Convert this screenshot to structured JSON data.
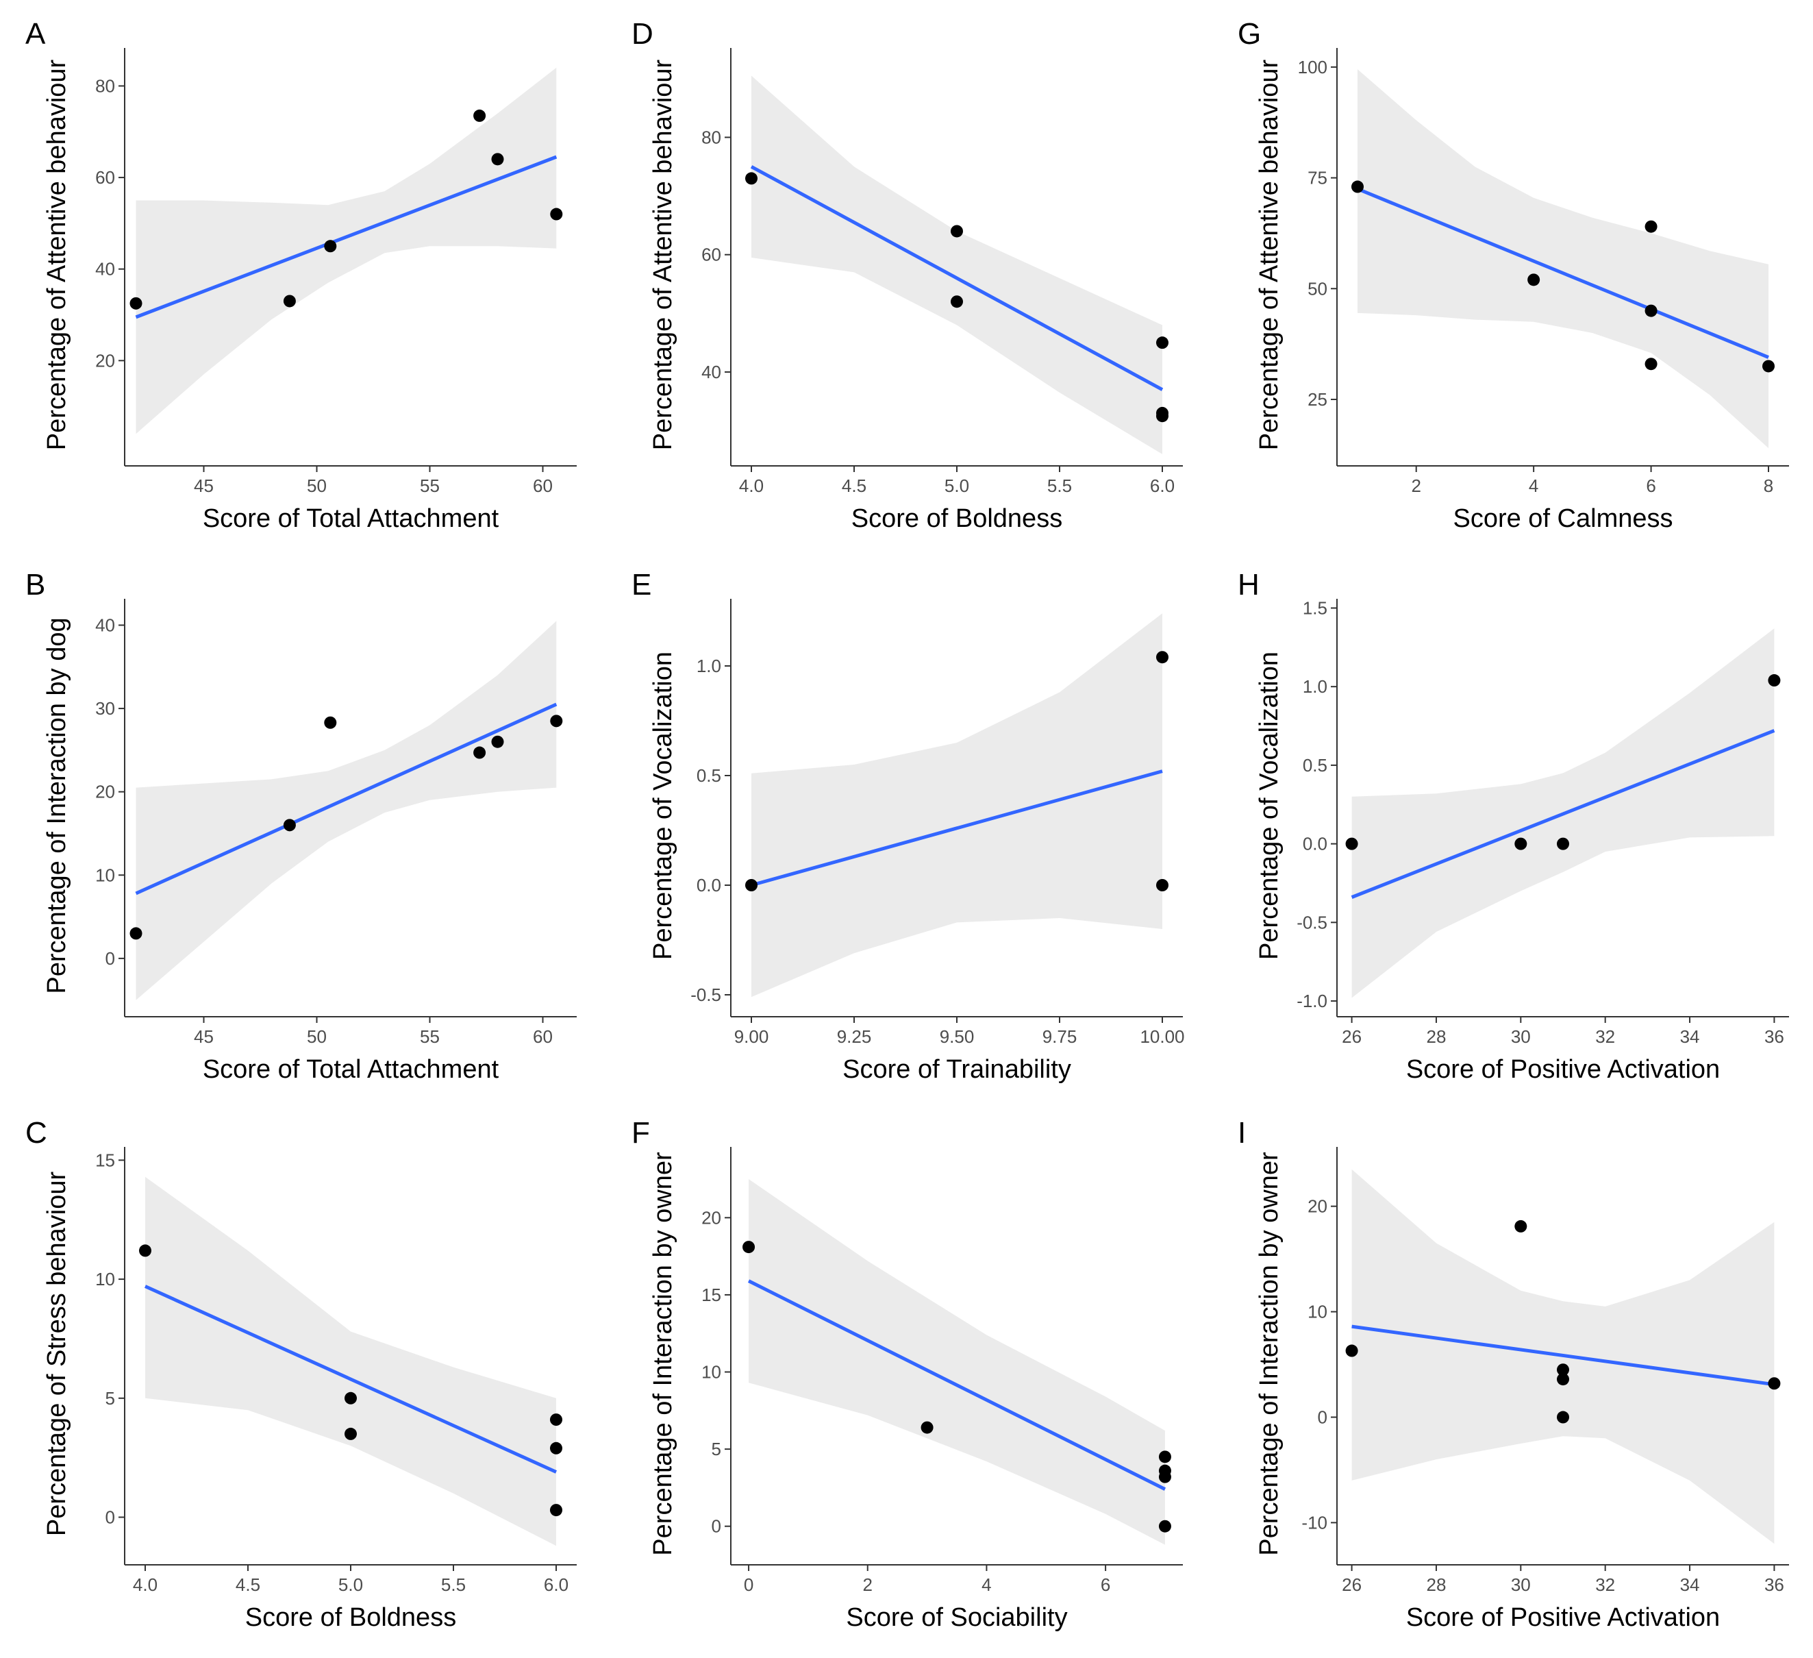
{
  "chart_data": [
    {
      "panel": "A",
      "type": "scatter",
      "xlabel": "Score of Total Attachment",
      "ylabel": "Percentage of Attentive behaviour",
      "xlim": [
        41.5,
        61.5
      ],
      "ylim": [
        -3,
        88
      ],
      "xticks": [
        45,
        50,
        55,
        60
      ],
      "yticks": [
        20,
        40,
        60,
        80
      ],
      "xtick_labels": [
        "45",
        "50",
        "55",
        "60"
      ],
      "ytick_labels": [
        "20",
        "40",
        "60",
        "80"
      ],
      "points": [
        [
          42,
          32.5
        ],
        [
          48.8,
          33
        ],
        [
          50.6,
          45
        ],
        [
          57.2,
          73.5
        ],
        [
          58,
          64
        ],
        [
          60.6,
          52
        ]
      ],
      "fit": {
        "x": [
          42,
          60.6
        ],
        "y": [
          29.5,
          64.5
        ]
      },
      "band": {
        "x": [
          42,
          45,
          48,
          50.5,
          53,
          55,
          58,
          60.6
        ],
        "lo": [
          4,
          17,
          29,
          37,
          43.5,
          45,
          45,
          44.5
        ],
        "hi": [
          55,
          55,
          54.5,
          54,
          57,
          63,
          74,
          84
        ]
      }
    },
    {
      "panel": "B",
      "type": "scatter",
      "xlabel": "Score of Total Attachment",
      "ylabel": "Percentage of Interaction by dog",
      "xlim": [
        41.5,
        61.5
      ],
      "ylim": [
        -7,
        43
      ],
      "xticks": [
        45,
        50,
        55,
        60
      ],
      "yticks": [
        0,
        10,
        20,
        30,
        40
      ],
      "xtick_labels": [
        "45",
        "50",
        "55",
        "60"
      ],
      "ytick_labels": [
        "0",
        "10",
        "20",
        "30",
        "40"
      ],
      "points": [
        [
          42,
          3
        ],
        [
          48.8,
          16
        ],
        [
          50.6,
          28.3
        ],
        [
          57.2,
          24.7
        ],
        [
          58,
          26
        ],
        [
          60.6,
          28.5
        ]
      ],
      "fit": {
        "x": [
          42,
          60.6
        ],
        "y": [
          7.8,
          30.5
        ]
      },
      "band": {
        "x": [
          42,
          45,
          48,
          50.5,
          53,
          55,
          58,
          60.6
        ],
        "lo": [
          -5,
          2,
          9,
          14,
          17.5,
          19,
          20,
          20.5
        ],
        "hi": [
          20.5,
          21,
          21.5,
          22.5,
          25,
          28,
          34,
          40.5
        ]
      }
    },
    {
      "panel": "C",
      "type": "scatter",
      "xlabel": "Score of Boldness",
      "ylabel": "Percentage of Stress behaviour",
      "xlim": [
        3.9,
        6.1
      ],
      "ylim": [
        -2,
        15.5
      ],
      "xticks": [
        4,
        4.5,
        5,
        5.5,
        6
      ],
      "yticks": [
        0,
        5,
        10,
        15
      ],
      "xtick_labels": [
        "4.0",
        "4.5",
        "5.0",
        "5.5",
        "6.0"
      ],
      "ytick_labels": [
        "0",
        "5",
        "10",
        "15"
      ],
      "points": [
        [
          4,
          11.2
        ],
        [
          5,
          5
        ],
        [
          5,
          3.5
        ],
        [
          6,
          4.1
        ],
        [
          6,
          2.9
        ],
        [
          6,
          0.3
        ]
      ],
      "fit": {
        "x": [
          4,
          6
        ],
        "y": [
          9.7,
          1.9
        ]
      },
      "band": {
        "x": [
          4,
          4.5,
          5,
          5.5,
          6
        ],
        "lo": [
          5,
          4.5,
          3,
          1,
          -1.2
        ],
        "hi": [
          14.3,
          11.2,
          7.8,
          6.3,
          5
        ]
      }
    },
    {
      "panel": "D",
      "type": "scatter",
      "xlabel": "Score of Boldness",
      "ylabel": "Percentage of Attentive behaviour",
      "xlim": [
        3.9,
        6.1
      ],
      "ylim": [
        24,
        95
      ],
      "xticks": [
        4,
        4.5,
        5,
        5.5,
        6
      ],
      "yticks": [
        40,
        60,
        80
      ],
      "xtick_labels": [
        "4.0",
        "4.5",
        "5.0",
        "5.5",
        "6.0"
      ],
      "ytick_labels": [
        "40",
        "60",
        "80"
      ],
      "points": [
        [
          4,
          73
        ],
        [
          5,
          64
        ],
        [
          5,
          52
        ],
        [
          6,
          45
        ],
        [
          6,
          33
        ],
        [
          6,
          32.5
        ]
      ],
      "fit": {
        "x": [
          4,
          6
        ],
        "y": [
          75,
          37
        ]
      },
      "band": {
        "x": [
          4,
          4.5,
          5,
          5.5,
          6
        ],
        "lo": [
          59.5,
          57,
          48,
          36.5,
          26
        ],
        "hi": [
          90.5,
          75,
          64,
          56,
          48
        ]
      }
    },
    {
      "panel": "E",
      "type": "scatter",
      "xlabel": "Score of Trainability",
      "ylabel": "Percentage of Vocalization",
      "xlim": [
        8.95,
        10.05
      ],
      "ylim": [
        -0.6,
        1.3
      ],
      "xticks": [
        9,
        9.25,
        9.5,
        9.75,
        10
      ],
      "yticks": [
        -0.5,
        0,
        0.5,
        1
      ],
      "xtick_labels": [
        "9.00",
        "9.25",
        "9.50",
        "9.75",
        "10.00"
      ],
      "ytick_labels": [
        "-0.5",
        "0.0",
        "0.5",
        "1.0"
      ],
      "points": [
        [
          9,
          0
        ],
        [
          10,
          1.04
        ],
        [
          10,
          0
        ]
      ],
      "fit": {
        "x": [
          9,
          10
        ],
        "y": [
          0,
          0.52
        ]
      },
      "band": {
        "x": [
          9,
          9.25,
          9.5,
          9.75,
          10
        ],
        "lo": [
          -0.51,
          -0.31,
          -0.17,
          -0.15,
          -0.2
        ],
        "hi": [
          0.51,
          0.55,
          0.65,
          0.88,
          1.24
        ]
      }
    },
    {
      "panel": "F",
      "type": "scatter",
      "xlabel": "Score of Sociability",
      "ylabel": "Percentage of Interaction by owner",
      "xlim": [
        -0.3,
        7.3
      ],
      "ylim": [
        -2.5,
        24.5
      ],
      "xticks": [
        0,
        2,
        4,
        6
      ],
      "yticks": [
        0,
        5,
        10,
        15,
        20
      ],
      "xtick_labels": [
        "0",
        "2",
        "4",
        "6"
      ],
      "ytick_labels": [
        "0",
        "5",
        "10",
        "15",
        "20"
      ],
      "points": [
        [
          0,
          18.1
        ],
        [
          3,
          6.4
        ],
        [
          7,
          4.5
        ],
        [
          7,
          3.6
        ],
        [
          7,
          3.2
        ],
        [
          7,
          0
        ]
      ],
      "fit": {
        "x": [
          0,
          7
        ],
        "y": [
          15.9,
          2.4
        ]
      },
      "band": {
        "x": [
          0,
          2,
          4,
          6,
          7
        ],
        "lo": [
          9.3,
          7.2,
          4.2,
          0.8,
          -1.2
        ],
        "hi": [
          22.5,
          17.2,
          12.4,
          8.4,
          6.2
        ]
      }
    },
    {
      "panel": "G",
      "type": "scatter",
      "xlabel": "Score of Calmness",
      "ylabel": "Percentage of Attentive behaviour",
      "xlim": [
        0.65,
        8.35
      ],
      "ylim": [
        10,
        104
      ],
      "xticks": [
        2,
        4,
        6,
        8
      ],
      "yticks": [
        25,
        50,
        75,
        100
      ],
      "xtick_labels": [
        "2",
        "4",
        "6",
        "8"
      ],
      "ytick_labels": [
        "25",
        "50",
        "75",
        "100"
      ],
      "points": [
        [
          1,
          73
        ],
        [
          4,
          52
        ],
        [
          6,
          64
        ],
        [
          6,
          45
        ],
        [
          6,
          33
        ],
        [
          8,
          32.5
        ]
      ],
      "fit": {
        "x": [
          1,
          8
        ],
        "y": [
          72.5,
          34.5
        ]
      },
      "band": {
        "x": [
          1,
          2,
          3,
          4,
          5,
          6,
          7,
          8
        ],
        "lo": [
          44.5,
          44,
          43,
          42.5,
          40,
          35.5,
          26,
          14
        ],
        "hi": [
          99.5,
          88,
          77.5,
          70.5,
          66,
          62.5,
          58.5,
          55.5
        ]
      }
    },
    {
      "panel": "H",
      "type": "scatter",
      "xlabel": "Score of Positive Activation",
      "ylabel": "Percentage of Vocalization",
      "xlim": [
        25.65,
        36.35
      ],
      "ylim": [
        -1.1,
        1.55
      ],
      "xticks": [
        26,
        28,
        30,
        32,
        34,
        36
      ],
      "yticks": [
        -1,
        -0.5,
        0,
        0.5,
        1,
        1.5
      ],
      "xtick_labels": [
        "26",
        "28",
        "30",
        "32",
        "34",
        "36"
      ],
      "ytick_labels": [
        "-1.0",
        "-0.5",
        "0.0",
        "0.5",
        "1.0",
        "1.5"
      ],
      "points": [
        [
          26,
          0
        ],
        [
          30,
          0
        ],
        [
          31,
          0
        ],
        [
          36,
          1.04
        ]
      ],
      "fit": {
        "x": [
          26,
          36
        ],
        "y": [
          -0.34,
          0.72
        ]
      },
      "band": {
        "x": [
          26,
          28,
          30,
          31,
          32,
          34,
          36
        ],
        "lo": [
          -0.98,
          -0.56,
          -0.3,
          -0.18,
          -0.05,
          0.04,
          0.05
        ],
        "hi": [
          0.3,
          0.32,
          0.38,
          0.45,
          0.58,
          0.96,
          1.37
        ]
      }
    },
    {
      "panel": "I",
      "type": "scatter",
      "xlabel": "Score of Positive Activation",
      "ylabel": "Percentage of Interaction by owner",
      "xlim": [
        25.65,
        36.35
      ],
      "ylim": [
        -14,
        25.5
      ],
      "xticks": [
        26,
        28,
        30,
        32,
        34,
        36
      ],
      "yticks": [
        -10,
        0,
        10,
        20
      ],
      "xtick_labels": [
        "26",
        "28",
        "30",
        "32",
        "34",
        "36"
      ],
      "ytick_labels": [
        "-10",
        "0",
        "10",
        "20"
      ],
      "points": [
        [
          26,
          6.3
        ],
        [
          30,
          18.1
        ],
        [
          31,
          4.5
        ],
        [
          31,
          3.6
        ],
        [
          31,
          0
        ],
        [
          36,
          3.2
        ]
      ],
      "fit": {
        "x": [
          26,
          36
        ],
        "y": [
          8.6,
          3.1
        ]
      },
      "band": {
        "x": [
          26,
          28,
          30,
          31,
          32,
          34,
          36
        ],
        "lo": [
          -6,
          -4,
          -2.5,
          -1.8,
          -2,
          -6,
          -12
        ],
        "hi": [
          23.5,
          16.5,
          12,
          11,
          10.5,
          13,
          18.5
        ]
      }
    }
  ]
}
